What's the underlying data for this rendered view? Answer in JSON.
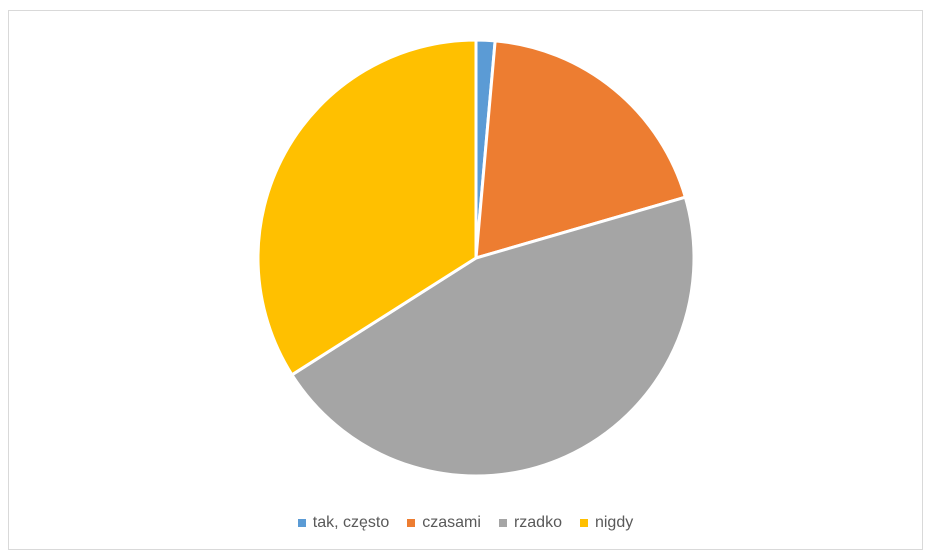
{
  "chart_data": {
    "type": "pie",
    "title": "",
    "categories": [
      "tak, często",
      "czasami",
      "rzadko",
      "nigdy"
    ],
    "values": [
      1.4,
      19.1,
      45.5,
      34.0
    ],
    "colors": [
      "#5b9bd5",
      "#ed7d31",
      "#a5a5a5",
      "#ffc000"
    ],
    "legend_position": "bottom"
  }
}
